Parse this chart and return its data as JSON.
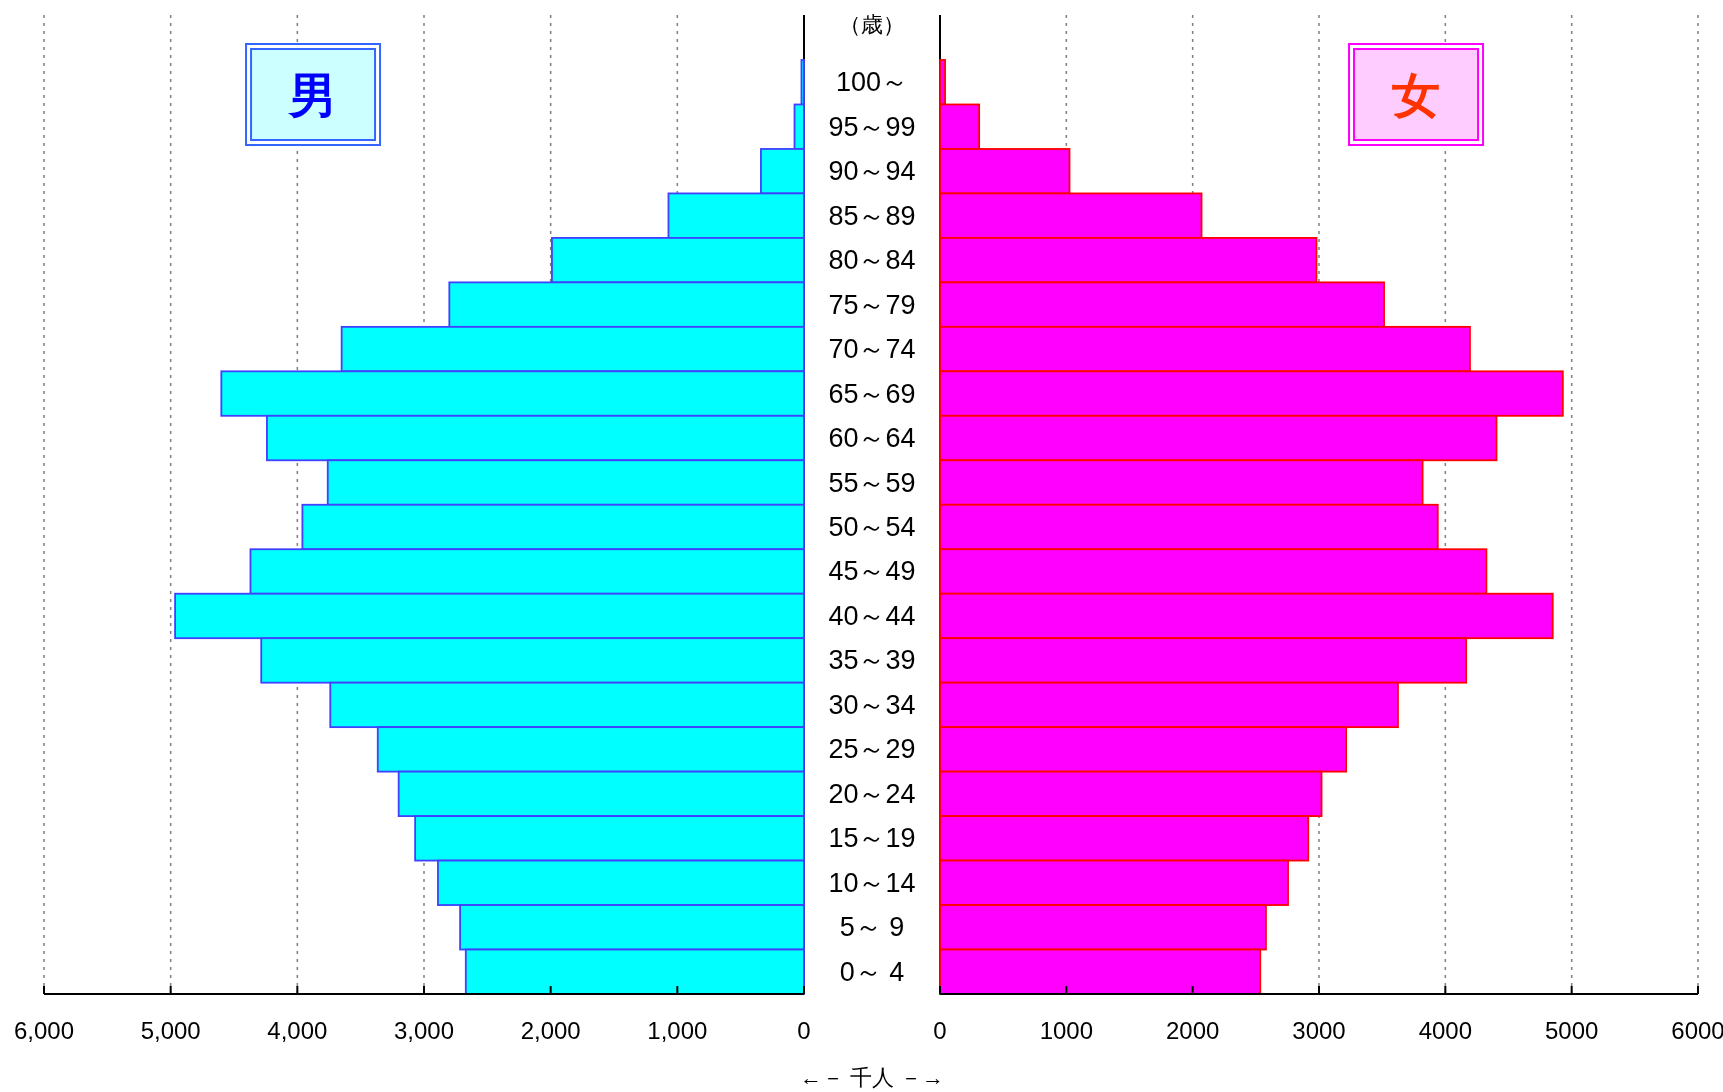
{
  "chart_data": [
    {
      "type": "bar",
      "orientation": "horizontal",
      "title": "男",
      "grid": "x",
      "categories": [
        "100～",
        "95～99",
        "90～94",
        "85～89",
        "80～84",
        "75～79",
        "70～74",
        "65～69",
        "60～64",
        "55～59",
        "50～54",
        "45～49",
        "40～44",
        "35～39",
        "30～34",
        "25～29",
        "20～24",
        "15～19",
        "10～14",
        "5～ 9",
        "0～ 4"
      ],
      "series": [
        {
          "color": "#00ffff",
          "values": [
            20,
            75,
            340,
            1070,
            1990,
            2800,
            3650,
            4600,
            4240,
            3760,
            3960,
            4370,
            4965,
            4285,
            3740,
            3365,
            3200,
            3070,
            2890,
            2715,
            2670
          ]
        }
      ],
      "xlim": [
        6000,
        0
      ],
      "xticks": [
        {
          "value": 6000,
          "label": "6,000"
        },
        {
          "value": 5000,
          "label": "5,000"
        },
        {
          "value": 4000,
          "label": "4,000"
        },
        {
          "value": 3000,
          "label": "3,000"
        },
        {
          "value": 2000,
          "label": "2,000"
        },
        {
          "value": 1000,
          "label": "1,000"
        },
        0
      ]
    },
    {
      "type": "bar",
      "orientation": "horizontal",
      "title": "女",
      "ylabel": "（歳）",
      "xlabel": "←－ 千人 －→",
      "grid": "x",
      "categories": [
        null,
        null,
        null,
        null,
        null,
        null,
        null,
        null,
        null,
        null,
        null,
        null,
        null,
        null,
        null,
        null,
        null,
        null,
        null,
        null,
        null
      ],
      "series": [
        {
          "color": "#ff00ff",
          "values": [
            40,
            310,
            1025,
            2070,
            2980,
            3515,
            4195,
            4930,
            4405,
            3820,
            3940,
            4325,
            4850,
            4165,
            3625,
            3215,
            3020,
            2915,
            2755,
            2580,
            2535
          ]
        }
      ],
      "xlim": [
        0,
        6000
      ],
      "xticks": [
        0,
        1000,
        2000,
        3000,
        4000,
        5000,
        6000
      ]
    }
  ]
}
